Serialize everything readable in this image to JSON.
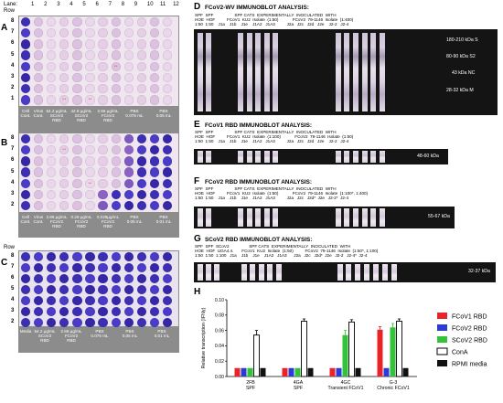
{
  "lane_label": "Lane:",
  "lanes": [
    "1",
    "2",
    "3",
    "4",
    "5",
    "6",
    "7",
    "8",
    "9",
    "10",
    "11",
    "12"
  ],
  "row_label": "Row",
  "plates": [
    {
      "letter": "A",
      "rows": [
        "8",
        "7",
        "6",
        "5",
        "4",
        "3",
        "2",
        "1"
      ],
      "captions": [
        "Cell\nCont.",
        "Virus\nCont.",
        "64.2 µg/mL\nSCoV2\nRBD",
        "42.8 µg/mL\nSCoV2\nRBD",
        "2.86 µg/mL\nFCoV2\nRBD",
        "PBS\n0.075 mL",
        "PBS\n0.05 mL"
      ]
    },
    {
      "letter": "B",
      "rows": [
        "8",
        "7",
        "6",
        "5",
        "4",
        "3",
        "2"
      ],
      "captions": [
        "Cell\nCont.",
        "Virus\nCont.",
        "2.86 µg/mL\nFCoV2\nRBD",
        "0.28 µg/mL\nFCoV2\nRBD",
        "0.028µg/mL\nFCoV2\nRBD",
        "PBS\n0.05 mL",
        "PBS\n0.01 mL"
      ]
    },
    {
      "letter": "C",
      "rows": [
        "8",
        "7",
        "6",
        "5",
        "4",
        "3",
        "2"
      ],
      "captions": [
        "Media",
        "54.2 µg/mL\nSCoV2\nRBD",
        "2.86 µg/mL\nFCoV2\nRBD",
        "PBS\n0.075 mL",
        "PBS\n0.05 mL",
        "PBS\n0.01 mL"
      ]
    }
  ],
  "blots": [
    {
      "letter": "D",
      "title": "FCoV2-WV IMMUNOBLOT ANALYSIS:",
      "header": "SPF  SPF                  SPF CATS  EXPERIMENTALLY  INOCULATED  WITH\nHOE  HOF          FCoV1  KU2  Isolate  (1:50)            FCoV2  79-1146  Isolate  (1:400)\n1:50  1:50    J1a    J1b    J1e    J1A2   J1A3          J2a   J2c   J2d   J2e    J2-2   J2-4",
      "markers": [
        "180-210 kDa  S",
        "80-90 kDa  S2",
        "43 kDa  NC",
        "28-32 kDa  M"
      ]
    },
    {
      "letter": "E",
      "title": "FCoV1 RBD IMMUNOBLOT ANALYSIS:",
      "header": "SPF  SPF                  SPF CATS  EXPERIMENTALLY  INOCULATED  WITH\nHOE  HOF          FCoV1  KU2  Isolate  (1:100)            FCoV2  79-1146  Isolate  (1:50)\n1:50  1:50    J1a    J1b    J1e    J1A2   J1A3          J2a   J2c   J2d   J2e    J2-2   J2-4",
      "markers": [
        "48-60 kDa"
      ]
    },
    {
      "letter": "F",
      "title": "FCoV2 RBD IMMUNOBLOT ANALYSIS:",
      "header": "SPF  SPF                  SPF CATS  EXPERIMENTALLY  INOCULATED  WITH\nHOE  HOF          FCoV1  KU2  Isolate  (1:50)            FCoV2  79-1146  Isolate  (1:100*, 1:400)\n1:50  1:50    J1a    J1b    J1e    J1A2   J1A3          J2a   J2c   J2d*  J2e   J2-2*  J2-4",
      "markers": [
        "55-67 kDa"
      ]
    },
    {
      "letter": "G",
      "title": "SCoV2 RBD IMMUNOBLOT ANALYSIS:",
      "header": "SPF  SPF  SCoV2                 SPF CATS  EXPERIMENTALLY  INOCULATED  WITH\nHOE  HOF  UGA4.4.       FCoV1  KU2  Isolate  (1:50)          FCoV2  79-1146  Isolate  (1:50*, 1:100)\n1:50  1:50  1:100   J1a    J1b    J1e    J1A2   J1A3      J2a   J2c   J2d*  J2e   J2-2   J2-4*  J2-4",
      "markers": [
        "32-37 kDa"
      ]
    }
  ],
  "chart_data": {
    "type": "bar",
    "panel_letter": "H",
    "ylabel": "Relative transcription (IFNγ)",
    "ylim": [
      0,
      0.1
    ],
    "yticks": [
      "0.00",
      "0.02",
      "0.04",
      "0.06",
      "0.08",
      "0.10"
    ],
    "categories": [
      "2FB\nSPF",
      "4GA\nSPF",
      "4GC\nTransient FCoV1",
      "G-3\nChronic FCoV1"
    ],
    "series": [
      {
        "name": "FCoV1 RBD",
        "color": "#e8232a",
        "values": [
          0.011,
          0.011,
          0.011,
          0.061
        ]
      },
      {
        "name": "FCoV2 RBD",
        "color": "#2c3bd6",
        "values": [
          0.011,
          0.011,
          0.011,
          0.011
        ]
      },
      {
        "name": "SCoV2 RBD",
        "color": "#35c23b",
        "values": [
          0.011,
          0.011,
          0.054,
          0.064
        ]
      },
      {
        "name": "ConA",
        "color": "#ffffff",
        "values": [
          0.054,
          0.072,
          0.071,
          0.072
        ]
      },
      {
        "name": "RPMI media",
        "color": "#111111",
        "values": [
          0.011,
          0.011,
          0.011,
          0.011
        ]
      }
    ],
    "errors": {
      "FCoV1 RBD": [
        0,
        0,
        0,
        0.004
      ],
      "SCoV2 RBD": [
        0,
        0,
        0.006,
        0.005
      ],
      "ConA": [
        0.006,
        0.003,
        0.003,
        0.003
      ]
    },
    "grid": false,
    "legend": "right"
  }
}
